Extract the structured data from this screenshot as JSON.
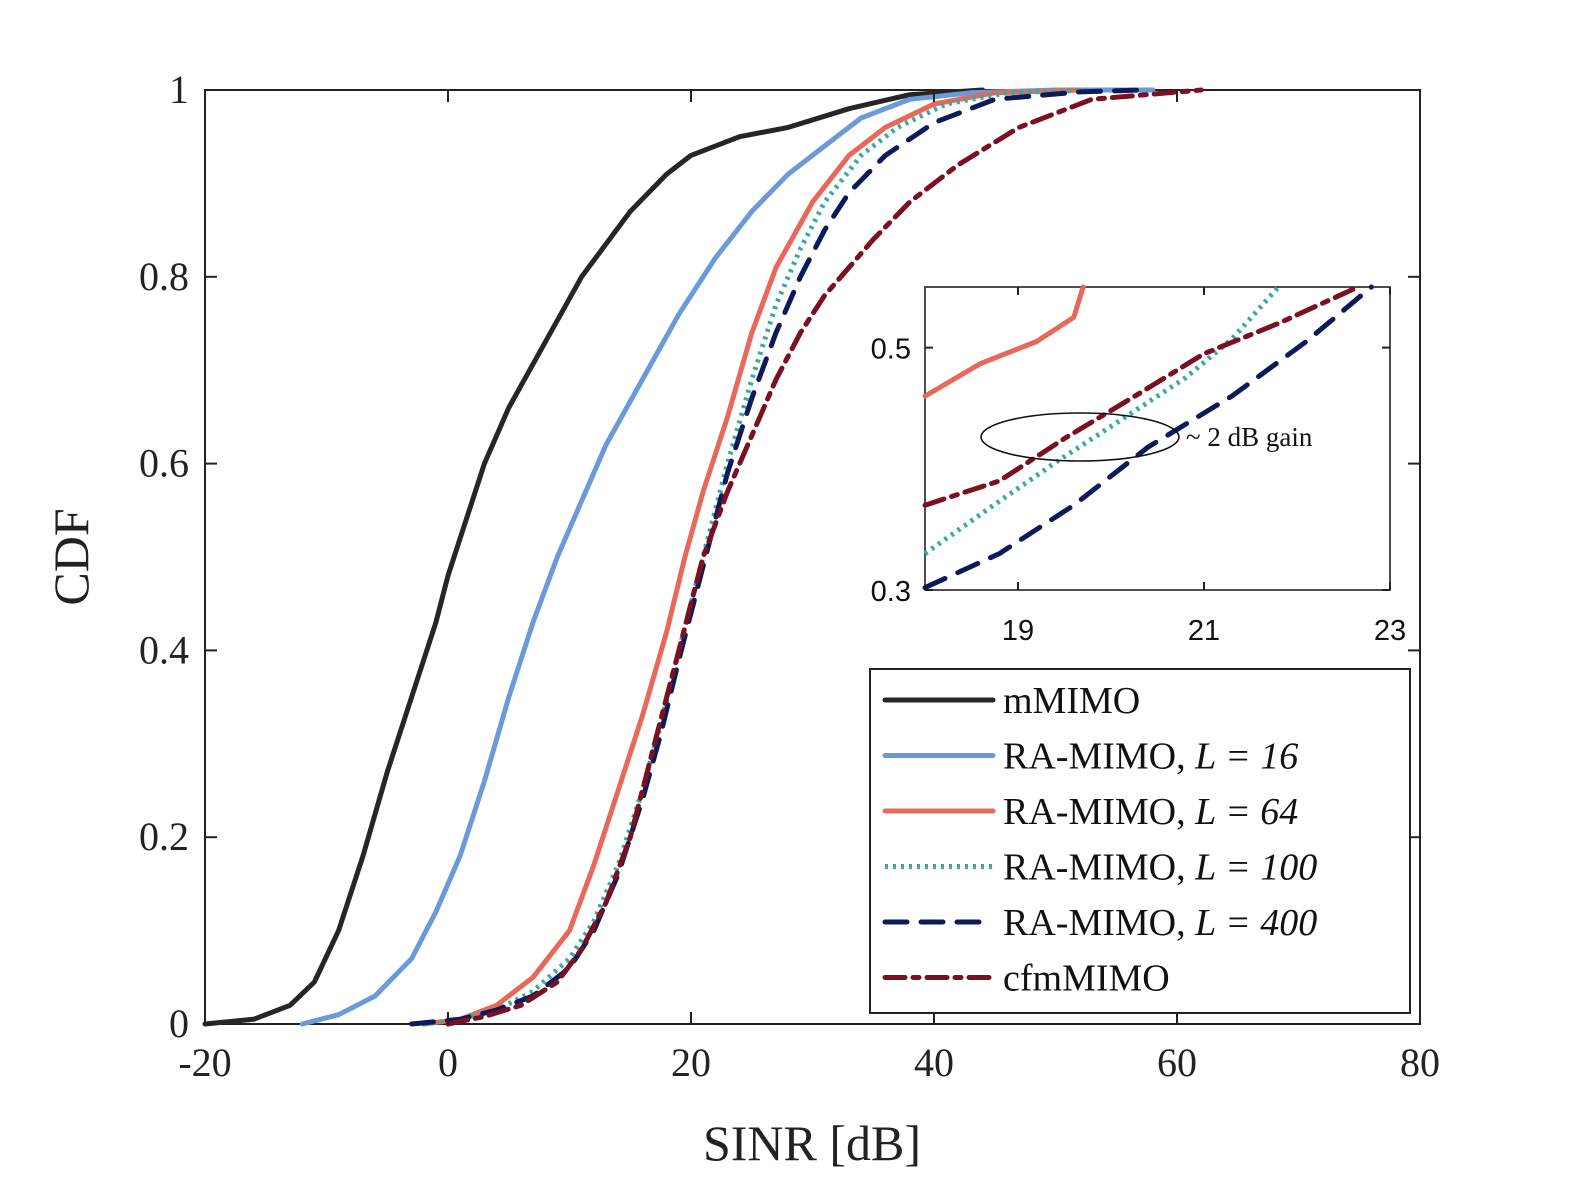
{
  "chart_data": {
    "type": "line",
    "title": "",
    "xlabel": "SINR [dB]",
    "ylabel": "CDF",
    "xlim": [
      -20,
      80
    ],
    "ylim": [
      0,
      1
    ],
    "xticks": [
      "-20",
      "0",
      "20",
      "40",
      "60",
      "80"
    ],
    "yticks": [
      "0",
      "0.2",
      "0.4",
      "0.6",
      "0.8",
      "1"
    ],
    "grid": false,
    "legend_position": "bottom-right",
    "series": [
      {
        "name": "mMIMO",
        "legend_label": "mMIMO",
        "color": "#262626",
        "style": "solid",
        "x": [
          -20,
          -16,
          -13,
          -11,
          -9,
          -7,
          -5,
          -3,
          -1,
          0,
          1.5,
          3,
          5,
          8,
          11,
          15,
          18,
          20,
          24,
          28,
          33,
          38,
          44
        ],
        "y": [
          0,
          0.005,
          0.02,
          0.045,
          0.1,
          0.18,
          0.27,
          0.35,
          0.43,
          0.48,
          0.54,
          0.6,
          0.66,
          0.73,
          0.8,
          0.87,
          0.91,
          0.93,
          0.95,
          0.96,
          0.98,
          0.995,
          1.0
        ]
      },
      {
        "name": "RA-MIMO, L = 16",
        "legend_label": "RA-MIMO, ",
        "legend_math": "L = 16",
        "color": "#6a9bd8",
        "style": "solid",
        "x": [
          -12,
          -9,
          -6,
          -3,
          -1,
          1,
          3,
          5,
          7,
          9,
          11,
          13,
          16,
          19,
          22,
          25,
          28,
          31,
          34,
          38,
          43,
          50,
          58
        ],
        "y": [
          0,
          0.01,
          0.03,
          0.07,
          0.12,
          0.18,
          0.26,
          0.35,
          0.43,
          0.5,
          0.56,
          0.62,
          0.69,
          0.76,
          0.82,
          0.87,
          0.91,
          0.94,
          0.97,
          0.99,
          0.997,
          1.0,
          1.0
        ]
      },
      {
        "name": "RA-MIMO, L = 64",
        "legend_label": "RA-MIMO, ",
        "legend_math": "L = 64",
        "color": "#e8685a",
        "style": "solid",
        "x": [
          -2,
          1,
          4,
          7,
          10,
          12,
          14,
          16,
          18,
          19.5,
          21,
          23,
          25,
          27,
          30,
          33,
          36,
          40,
          45,
          52
        ],
        "y": [
          0,
          0.005,
          0.02,
          0.05,
          0.1,
          0.17,
          0.25,
          0.33,
          0.42,
          0.5,
          0.57,
          0.65,
          0.74,
          0.81,
          0.88,
          0.93,
          0.96,
          0.985,
          0.997,
          1.0
        ]
      },
      {
        "name": "RA-MIMO, L = 100",
        "legend_label": "RA-MIMO, ",
        "legend_math": "L = 100",
        "color": "#3aa8a4",
        "style": "dotted",
        "x": [
          -2,
          1,
          4,
          7,
          10,
          12,
          14,
          16,
          17.5,
          19,
          21,
          23,
          25,
          27,
          29,
          31,
          34,
          37,
          41,
          46,
          53
        ],
        "y": [
          0,
          0.005,
          0.015,
          0.035,
          0.07,
          0.11,
          0.17,
          0.25,
          0.32,
          0.4,
          0.5,
          0.6,
          0.69,
          0.77,
          0.83,
          0.88,
          0.93,
          0.96,
          0.985,
          0.997,
          1.0
        ]
      },
      {
        "name": "RA-MIMO, L = 400",
        "legend_label": "RA-MIMO, ",
        "legend_math": "L = 400",
        "color": "#0c1a5a",
        "style": "dashed",
        "x": [
          -3,
          1,
          4,
          7,
          10,
          12,
          14,
          16,
          17.5,
          19,
          21,
          23,
          25,
          27,
          29,
          31,
          33,
          36,
          40,
          45,
          52,
          57
        ],
        "y": [
          0,
          0.005,
          0.015,
          0.03,
          0.06,
          0.1,
          0.16,
          0.24,
          0.31,
          0.39,
          0.49,
          0.59,
          0.67,
          0.74,
          0.8,
          0.85,
          0.89,
          0.93,
          0.965,
          0.99,
          0.998,
          1.0
        ]
      },
      {
        "name": "cfmMIMO",
        "legend_label": "cfmMIMO",
        "color": "#7b1020",
        "style": "dashdot",
        "x": [
          0,
          3,
          6,
          9,
          11,
          13,
          15,
          17,
          19,
          21,
          23,
          25,
          27,
          29,
          31,
          33,
          35,
          38,
          42,
          47,
          53,
          62
        ],
        "y": [
          0,
          0.008,
          0.02,
          0.045,
          0.08,
          0.13,
          0.2,
          0.3,
          0.4,
          0.5,
          0.57,
          0.63,
          0.69,
          0.74,
          0.78,
          0.81,
          0.84,
          0.88,
          0.92,
          0.96,
          0.99,
          1.0
        ]
      }
    ],
    "inset": {
      "xlim": [
        18,
        23
      ],
      "ylim": [
        0.3,
        0.55
      ],
      "xticks": [
        "19",
        "21",
        "23"
      ],
      "yticks": [
        "0.3",
        "0.5"
      ],
      "annotation": "~ 2 dB gain",
      "series_points": {
        "RA-MIMO, L = 64": {
          "x": [
            18,
            18.6,
            19.2,
            19.6,
            19.7
          ],
          "y": [
            0.46,
            0.487,
            0.505,
            0.525,
            0.55
          ]
        },
        "RA-MIMO, L = 100": {
          "x": [
            18,
            18.7,
            19.4,
            20.1,
            20.8,
            21.3,
            21.8
          ],
          "y": [
            0.33,
            0.368,
            0.405,
            0.44,
            0.475,
            0.507,
            0.55
          ]
        },
        "RA-MIMO, L = 400": {
          "x": [
            18,
            18.8,
            19.6,
            20.4,
            21.3,
            22.1,
            22.8
          ],
          "y": [
            0.302,
            0.33,
            0.37,
            0.418,
            0.46,
            0.505,
            0.55
          ]
        },
        "cfmMIMO": {
          "x": [
            18,
            18.8,
            19.5,
            20.3,
            21.0,
            21.8,
            22.6
          ],
          "y": [
            0.37,
            0.39,
            0.425,
            0.462,
            0.495,
            0.52,
            0.548
          ]
        }
      }
    }
  }
}
